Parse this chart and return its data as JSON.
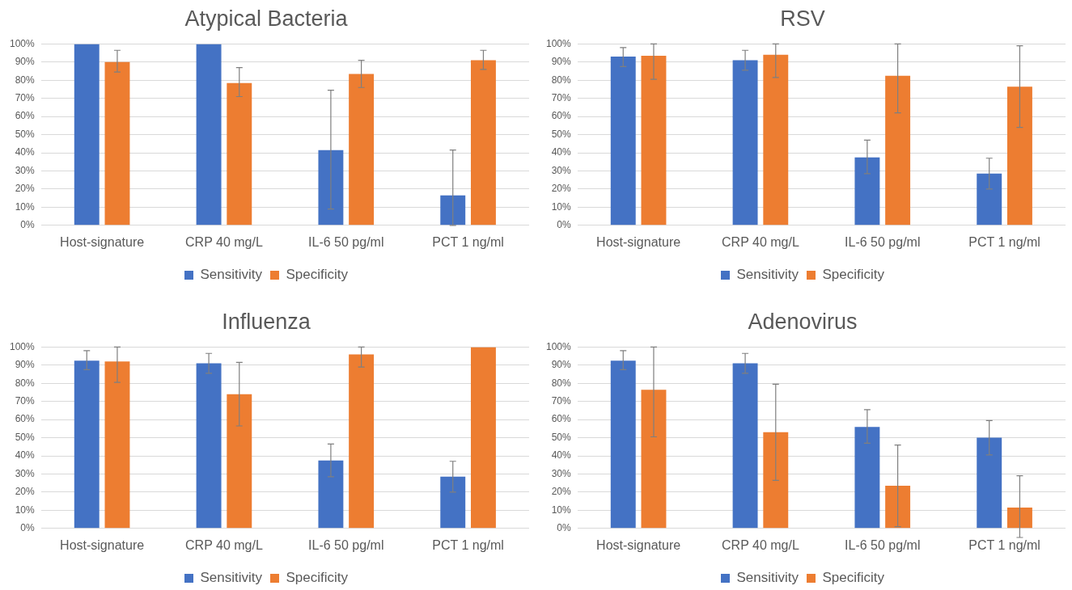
{
  "chart_data": [
    {
      "type": "bar",
      "title": "Atypical Bacteria",
      "categories": [
        "Host-signature",
        "CRP 40 mg/L",
        "IL-6 50 pg/ml",
        "PCT 1 ng/ml"
      ],
      "series": [
        {
          "name": "Sensitivity",
          "color": "#4472c4",
          "values": [
            100,
            100,
            41.5,
            16.5
          ],
          "errors": [
            null,
            null,
            [
              9,
              74.5
            ],
            [
              0,
              41.5
            ]
          ]
        },
        {
          "name": "Specificity",
          "color": "#ed7d31",
          "values": [
            90,
            78.5,
            83.5,
            91
          ],
          "errors": [
            [
              84.5,
              96.5
            ],
            [
              71,
              87
            ],
            [
              76,
              91
            ],
            [
              86,
              96.5
            ]
          ]
        }
      ],
      "ylim": [
        0,
        100
      ],
      "yticks": [
        {
          "value": 0,
          "label": "0%"
        },
        {
          "value": 10,
          "label": "10%"
        },
        {
          "value": 20,
          "label": "20%"
        },
        {
          "value": 30,
          "label": "30%"
        },
        {
          "value": 40,
          "label": "40%"
        },
        {
          "value": 50,
          "label": "50%"
        },
        {
          "value": 60,
          "label": "60%"
        },
        {
          "value": 70,
          "label": "70%"
        },
        {
          "value": 80,
          "label": "80%"
        },
        {
          "value": 90,
          "label": "90%"
        },
        {
          "value": 100,
          "label": "100%"
        }
      ],
      "grid": "y",
      "legend": "bottom"
    },
    {
      "type": "bar",
      "title": "RSV",
      "categories": [
        "Host-signature",
        "CRP 40 mg/L",
        "IL-6 50 pg/ml",
        "PCT 1 ng/ml"
      ],
      "series": [
        {
          "name": "Sensitivity",
          "color": "#4472c4",
          "values": [
            93,
            91,
            37.5,
            28.5
          ],
          "errors": [
            [
              87.5,
              98
            ],
            [
              85.5,
              96.5
            ],
            [
              28.5,
              47
            ],
            [
              20,
              37
            ]
          ]
        },
        {
          "name": "Specificity",
          "color": "#ed7d31",
          "values": [
            93.5,
            94,
            82.5,
            76.5
          ],
          "errors": [
            [
              80.5,
              100
            ],
            [
              81.5,
              100
            ],
            [
              62,
              100
            ],
            [
              54,
              99
            ]
          ]
        }
      ],
      "ylim": [
        0,
        100
      ],
      "yticks": [
        {
          "value": 0,
          "label": "0%"
        },
        {
          "value": 10,
          "label": "10%"
        },
        {
          "value": 20,
          "label": "20%"
        },
        {
          "value": 30,
          "label": "30%"
        },
        {
          "value": 40,
          "label": "40%"
        },
        {
          "value": 50,
          "label": "50%"
        },
        {
          "value": 60,
          "label": "60%"
        },
        {
          "value": 70,
          "label": "70%"
        },
        {
          "value": 80,
          "label": "80%"
        },
        {
          "value": 90,
          "label": "90%"
        },
        {
          "value": 100,
          "label": "100%"
        }
      ],
      "grid": "y",
      "legend": "bottom"
    },
    {
      "type": "bar",
      "title": "Influenza",
      "categories": [
        "Host-signature",
        "CRP 40 mg/L",
        "IL-6 50 pg/ml",
        "PCT 1 ng/ml"
      ],
      "series": [
        {
          "name": "Sensitivity",
          "color": "#4472c4",
          "values": [
            92.5,
            91,
            37.5,
            28.5
          ],
          "errors": [
            [
              87.5,
              98
            ],
            [
              85.5,
              96.5
            ],
            [
              28.5,
              46.5
            ],
            [
              20,
              37
            ]
          ]
        },
        {
          "name": "Specificity",
          "color": "#ed7d31",
          "values": [
            92,
            74,
            96,
            100
          ],
          "errors": [
            [
              80.5,
              100
            ],
            [
              56.5,
              91.5
            ],
            [
              89,
              100
            ],
            null
          ]
        }
      ],
      "ylim": [
        0,
        100
      ],
      "yticks": [
        {
          "value": 0,
          "label": "0%"
        },
        {
          "value": 10,
          "label": "10%"
        },
        {
          "value": 20,
          "label": "20%"
        },
        {
          "value": 30,
          "label": "30%"
        },
        {
          "value": 40,
          "label": "40%"
        },
        {
          "value": 50,
          "label": "50%"
        },
        {
          "value": 60,
          "label": "60%"
        },
        {
          "value": 70,
          "label": "70%"
        },
        {
          "value": 80,
          "label": "80%"
        },
        {
          "value": 90,
          "label": "90%"
        },
        {
          "value": 100,
          "label": "100%"
        }
      ],
      "grid": "y",
      "legend": "bottom"
    },
    {
      "type": "bar",
      "title": "Adenovirus",
      "categories": [
        "Host-signature",
        "CRP 40 mg/L",
        "IL-6 50 pg/ml",
        "PCT 1 ng/ml"
      ],
      "series": [
        {
          "name": "Sensitivity",
          "color": "#4472c4",
          "values": [
            92.5,
            91,
            56,
            50
          ],
          "errors": [
            [
              87.5,
              98
            ],
            [
              85.5,
              96.5
            ],
            [
              47,
              65.5
            ],
            [
              40.5,
              59.5
            ]
          ]
        },
        {
          "name": "Specificity",
          "color": "#ed7d31",
          "values": [
            76.5,
            53,
            23.5,
            11.5
          ],
          "errors": [
            [
              50.5,
              100
            ],
            [
              26.5,
              79.5
            ],
            [
              1,
              46
            ],
            [
              -5,
              29
            ]
          ]
        }
      ],
      "ylim": [
        0,
        100
      ],
      "yticks": [
        {
          "value": 0,
          "label": "0%"
        },
        {
          "value": 10,
          "label": "10%"
        },
        {
          "value": 20,
          "label": "20%"
        },
        {
          "value": 30,
          "label": "30%"
        },
        {
          "value": 40,
          "label": "40%"
        },
        {
          "value": 50,
          "label": "50%"
        },
        {
          "value": 60,
          "label": "60%"
        },
        {
          "value": 70,
          "label": "70%"
        },
        {
          "value": 80,
          "label": "80%"
        },
        {
          "value": 90,
          "label": "90%"
        },
        {
          "value": 100,
          "label": "100%"
        }
      ],
      "grid": "y",
      "legend": "bottom"
    }
  ]
}
